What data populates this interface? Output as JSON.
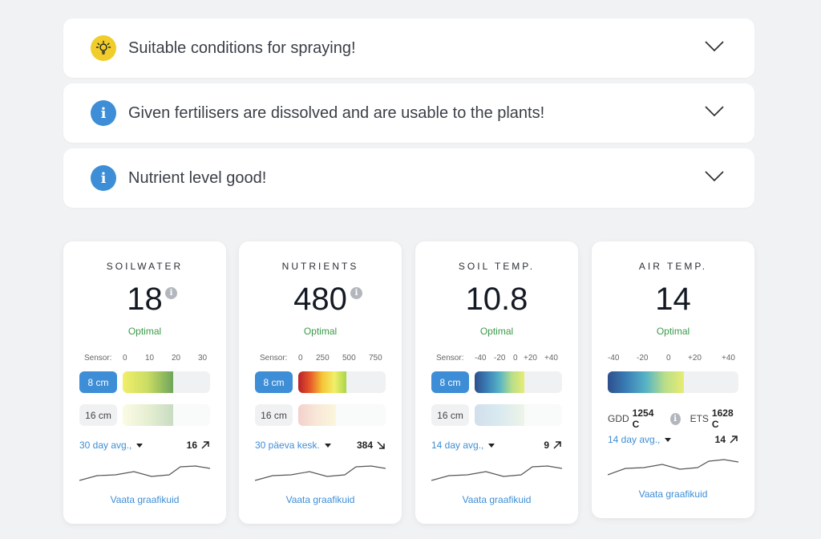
{
  "alerts": [
    {
      "icon": "lightbulb-icon",
      "text": "Suitable conditions for spraying!"
    },
    {
      "icon": "info-icon",
      "text": "Given fertilisers are dissolved and are usable to the plants!"
    },
    {
      "icon": "info-icon",
      "text": "Nutrient level good!"
    }
  ],
  "info_glyph": "i",
  "cards": [
    {
      "title": "SOILWATER",
      "value": "18",
      "status": "Optimal",
      "sensor_label": "Sensor:",
      "ticks": [
        "0",
        "10",
        "20",
        "30"
      ],
      "depth_1": "8 cm",
      "depth_2": "16 cm",
      "level_1": 0.58,
      "level_2": 0.58,
      "avg_label": "30 day avg.,",
      "avg_value": "16",
      "trend": "up",
      "link": "Vaata graafikuid"
    },
    {
      "title": "NUTRIENTS",
      "value": "480",
      "status": "Optimal",
      "sensor_label": "Sensor:",
      "ticks": [
        "0",
        "250",
        "500",
        "750"
      ],
      "depth_1": "8 cm",
      "depth_2": "16 cm",
      "level_1": 0.55,
      "level_2": 0.43,
      "avg_label": "30 päeva kesk.",
      "avg_value": "384",
      "trend": "down",
      "link": "Vaata graafikuid"
    },
    {
      "title": "SOIL TEMP.",
      "value": "10.8",
      "status": "Optimal",
      "sensor_label": "Sensor:",
      "ticks": [
        "-40",
        "-20",
        "0",
        "+20",
        "+40"
      ],
      "depth_1": "8 cm",
      "depth_2": "16 cm",
      "level_1": 0.57,
      "level_2": 0.57,
      "avg_label": "14 day avg.,",
      "avg_value": "9",
      "trend": "up",
      "link": "Vaata graafikuid"
    },
    {
      "title": "AIR TEMP.",
      "value": "14",
      "status": "Optimal",
      "ticks": [
        "-40",
        "-20",
        "0",
        "+20",
        "+40"
      ],
      "level_1": 0.58,
      "gdd_label": "GDD",
      "gdd_value": "1254 C",
      "ets_label": "ETS",
      "ets_value": "1628 C",
      "avg_label": "14 day avg.,",
      "avg_value": "14",
      "trend": "up",
      "link": "Vaata graafikuid"
    }
  ]
}
